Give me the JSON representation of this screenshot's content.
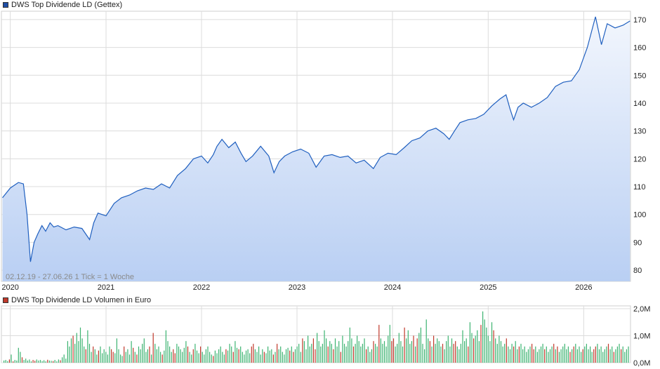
{
  "price_chart": {
    "title": "DWS Top Dividende LD (Gettex)",
    "info": "02.12.19 - 27.06.26   1 Tick = 1 Woche",
    "line_color": "#1f5fbf",
    "legend_color": "#1f4fa6"
  },
  "volume_chart": {
    "title": "DWS Top Dividende LD Volumen in Euro",
    "legend_color": "#c0392b"
  },
  "chart_data": [
    {
      "type": "area",
      "title": "DWS Top Dividende LD (Gettex)",
      "x_axis": {
        "tick_labels": [
          "2020",
          "2021",
          "2022",
          "2023",
          "2024",
          "2025",
          "2026"
        ]
      },
      "y_axis": {
        "position": "right",
        "ylim": [
          76,
          173
        ],
        "tick_labels": [
          "80",
          "90",
          "100",
          "110",
          "120",
          "130",
          "140",
          "150",
          "160",
          "170"
        ]
      },
      "grid": true,
      "series": [
        {
          "name": "DWS Top Dividende LD (Gettex)",
          "points": [
            [
              "2019-12-02",
              106.0
            ],
            [
              "2020-01-01",
              109.5
            ],
            [
              "2020-02-01",
              111.5
            ],
            [
              "2020-02-20",
              111.0
            ],
            [
              "2020-03-05",
              100.0
            ],
            [
              "2020-03-18",
              83.0
            ],
            [
              "2020-04-01",
              90.0
            ],
            [
              "2020-04-15",
              93.0
            ],
            [
              "2020-05-01",
              96.0
            ],
            [
              "2020-05-15",
              94.0
            ],
            [
              "2020-06-01",
              97.0
            ],
            [
              "2020-06-15",
              95.5
            ],
            [
              "2020-07-01",
              96.0
            ],
            [
              "2020-08-01",
              94.5
            ],
            [
              "2020-09-01",
              95.5
            ],
            [
              "2020-10-01",
              95.0
            ],
            [
              "2020-10-30",
              91.0
            ],
            [
              "2020-11-15",
              97.0
            ],
            [
              "2020-12-01",
              100.5
            ],
            [
              "2021-01-01",
              99.5
            ],
            [
              "2021-02-01",
              104.0
            ],
            [
              "2021-03-01",
              106.0
            ],
            [
              "2021-04-01",
              107.0
            ],
            [
              "2021-05-01",
              108.5
            ],
            [
              "2021-06-01",
              109.5
            ],
            [
              "2021-07-01",
              109.0
            ],
            [
              "2021-08-01",
              111.0
            ],
            [
              "2021-09-01",
              109.5
            ],
            [
              "2021-10-01",
              114.0
            ],
            [
              "2021-11-01",
              116.5
            ],
            [
              "2021-12-01",
              120.0
            ],
            [
              "2022-01-01",
              121.0
            ],
            [
              "2022-01-25",
              118.5
            ],
            [
              "2022-02-15",
              121.5
            ],
            [
              "2022-03-01",
              124.5
            ],
            [
              "2022-03-20",
              127.0
            ],
            [
              "2022-04-15",
              124.0
            ],
            [
              "2022-05-10",
              126.0
            ],
            [
              "2022-06-01",
              122.0
            ],
            [
              "2022-06-20",
              119.0
            ],
            [
              "2022-07-15",
              121.0
            ],
            [
              "2022-08-15",
              124.5
            ],
            [
              "2022-09-15",
              121.0
            ],
            [
              "2022-10-05",
              115.0
            ],
            [
              "2022-10-25",
              119.0
            ],
            [
              "2022-11-15",
              121.0
            ],
            [
              "2022-12-15",
              122.5
            ],
            [
              "2023-01-15",
              123.5
            ],
            [
              "2023-02-15",
              122.0
            ],
            [
              "2023-03-15",
              117.0
            ],
            [
              "2023-04-15",
              121.0
            ],
            [
              "2023-05-15",
              121.5
            ],
            [
              "2023-06-15",
              120.5
            ],
            [
              "2023-07-15",
              121.0
            ],
            [
              "2023-08-15",
              118.5
            ],
            [
              "2023-09-15",
              119.5
            ],
            [
              "2023-10-20",
              116.5
            ],
            [
              "2023-11-15",
              120.5
            ],
            [
              "2023-12-15",
              122.0
            ],
            [
              "2024-01-15",
              121.5
            ],
            [
              "2024-02-15",
              124.0
            ],
            [
              "2024-03-15",
              126.5
            ],
            [
              "2024-04-15",
              127.5
            ],
            [
              "2024-05-15",
              130.0
            ],
            [
              "2024-06-15",
              131.0
            ],
            [
              "2024-07-15",
              129.0
            ],
            [
              "2024-08-05",
              127.0
            ],
            [
              "2024-08-25",
              130.0
            ],
            [
              "2024-09-15",
              133.0
            ],
            [
              "2024-10-15",
              134.0
            ],
            [
              "2024-11-15",
              134.5
            ],
            [
              "2024-12-15",
              136.0
            ],
            [
              "2025-01-15",
              139.0
            ],
            [
              "2025-02-15",
              141.5
            ],
            [
              "2025-03-10",
              143.0
            ],
            [
              "2025-03-25",
              138.0
            ],
            [
              "2025-04-08",
              134.0
            ],
            [
              "2025-04-25",
              138.5
            ],
            [
              "2025-05-15",
              140.0
            ],
            [
              "2025-06-15",
              138.5
            ],
            [
              "2025-07-15",
              140.0
            ],
            [
              "2025-08-15",
              142.0
            ],
            [
              "2025-09-15",
              146.0
            ],
            [
              "2025-10-15",
              147.5
            ],
            [
              "2025-11-15",
              148.0
            ],
            [
              "2025-12-15",
              152.0
            ],
            [
              "2026-01-15",
              160.0
            ],
            [
              "2026-02-15",
              171.0
            ],
            [
              "2026-03-10",
              161.0
            ],
            [
              "2026-04-01",
              168.5
            ],
            [
              "2026-05-01",
              167.0
            ],
            [
              "2026-06-01",
              168.0
            ],
            [
              "2026-06-27",
              169.5
            ]
          ]
        }
      ]
    },
    {
      "type": "bar",
      "title": "DWS Top Dividende LD Volumen in Euro",
      "x_axis": {
        "tick_labels": [
          "2020",
          "2021",
          "2022",
          "2023",
          "2024",
          "2025",
          "2026"
        ]
      },
      "y_axis": {
        "position": "right",
        "ylim": [
          0,
          2.0
        ],
        "tick_labels": [
          "0,0M",
          "1,0M",
          "2,0M"
        ]
      },
      "grid": true,
      "bar_colors": {
        "up": "#3cb371",
        "down": "#c0392b"
      },
      "series": [
        {
          "name": "DWS Top Dividende LD Volumen in Euro",
          "unit": "Mio. EUR",
          "weekly_values_estimated": [
            0.08,
            0.1,
            0.06,
            0.12,
            0.3,
            0.05,
            0.1,
            0.08,
            0.55,
            0.4,
            0.2,
            0.1,
            0.15,
            0.08,
            0.12,
            0.05,
            0.1,
            0.07,
            0.12,
            0.08,
            0.1,
            0.06,
            0.09,
            0.05,
            0.11,
            0.08,
            0.07,
            0.06,
            0.1,
            0.05,
            0.12,
            0.09,
            0.2,
            0.3,
            0.15,
            0.8,
            0.6,
            0.9,
            1.0,
            0.7,
            1.1,
            0.8,
            1.3,
            0.9,
            0.6,
            0.5,
            1.2,
            0.7,
            0.4,
            0.6,
            0.5,
            0.3,
            0.45,
            0.6,
            0.35,
            0.5,
            0.4,
            0.3,
            0.6,
            0.5,
            0.4,
            0.35,
            0.9,
            0.5,
            0.3,
            0.25,
            0.6,
            0.4,
            0.5,
            0.3,
            0.8,
            0.55,
            0.4,
            0.3,
            0.6,
            0.5,
            0.7,
            0.9,
            0.4,
            0.5,
            0.6,
            0.3,
            1.1,
            0.7,
            0.5,
            0.6,
            0.4,
            0.3,
            0.45,
            1.2,
            0.8,
            0.6,
            0.4,
            0.5,
            0.35,
            0.7,
            0.6,
            0.5,
            0.4,
            0.55,
            0.8,
            0.6,
            0.4,
            0.3,
            0.5,
            0.7,
            0.45,
            0.35,
            0.6,
            0.4,
            0.3,
            0.5,
            0.6,
            0.4,
            0.3,
            0.25,
            0.45,
            0.35,
            0.5,
            0.6,
            0.4,
            0.3,
            0.5,
            0.45,
            0.7,
            0.6,
            0.4,
            0.8,
            0.55,
            0.5,
            0.6,
            0.4,
            0.3,
            0.45,
            0.5,
            0.35,
            0.6,
            0.7,
            0.5,
            0.4,
            0.6,
            0.3,
            0.5,
            0.4,
            0.35,
            0.6,
            0.45,
            0.5,
            0.3,
            0.4,
            0.7,
            0.5,
            0.6,
            0.4,
            0.3,
            0.5,
            0.55,
            0.45,
            0.6,
            0.4,
            0.5,
            0.6,
            0.7,
            0.4,
            0.9,
            0.8,
            0.5,
            1.0,
            0.6,
            0.7,
            0.9,
            0.5,
            1.1,
            0.8,
            0.6,
            0.7,
            1.2,
            0.9,
            0.6,
            0.8,
            0.7,
            0.5,
            0.9,
            0.6,
            0.8,
            0.4,
            1.0,
            0.7,
            0.6,
            0.8,
            1.3,
            0.9,
            0.6,
            0.7,
            1.0,
            0.8,
            0.6,
            0.7,
            0.9,
            0.5,
            0.6,
            0.4,
            0.5,
            0.8,
            0.7,
            0.6,
            1.4,
            0.9,
            0.7,
            0.8,
            0.6,
            1.0,
            1.4,
            0.8,
            0.9,
            0.6,
            0.7,
            1.1,
            0.8,
            0.6,
            1.3,
            0.9,
            1.2,
            0.7,
            0.8,
            1.0,
            0.6,
            0.9,
            1.1,
            1.3,
            0.7,
            0.5,
            1.6,
            0.9,
            0.8,
            0.6,
            1.0,
            0.7,
            0.9,
            0.8,
            0.6,
            0.7,
            0.5,
            0.8,
            1.0,
            0.6,
            0.9,
            0.7,
            0.8,
            0.6,
            0.5,
            0.7,
            1.2,
            0.8,
            0.9,
            0.6,
            1.5,
            1.1,
            0.9,
            1.0,
            1.2,
            0.8,
            1.4,
            1.9,
            1.6,
            1.3,
            1.0,
            0.8,
            1.5,
            1.2,
            0.9,
            0.7,
            1.0,
            0.8,
            0.6,
            0.7,
            0.9,
            0.6,
            0.5,
            0.7,
            0.6,
            0.8,
            0.5,
            0.6,
            0.7,
            0.5,
            0.6,
            0.4,
            0.5,
            0.6,
            0.7,
            0.5,
            0.6,
            0.4,
            0.5,
            0.6,
            0.7,
            0.5,
            0.6,
            0.4,
            0.5,
            0.6,
            0.7,
            0.5,
            0.6,
            0.4,
            0.5,
            0.6,
            0.7,
            0.5,
            0.6,
            0.4,
            0.5,
            0.6,
            0.7,
            0.5,
            0.6,
            0.4,
            0.5,
            0.6,
            0.7,
            0.5,
            0.6,
            0.4,
            0.5,
            0.6,
            0.7,
            0.5,
            0.6,
            0.4,
            0.5,
            0.6,
            0.7,
            0.5,
            0.6,
            0.4,
            0.5,
            0.6,
            0.7,
            0.5,
            0.6,
            0.4,
            0.5,
            0.6
          ]
        }
      ]
    }
  ]
}
